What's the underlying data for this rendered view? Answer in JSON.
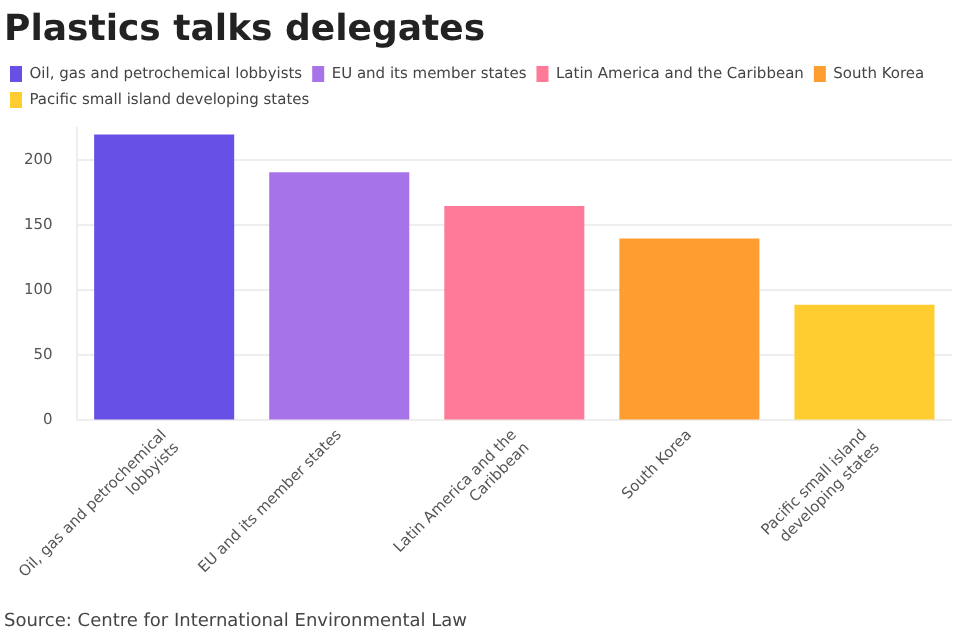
{
  "chart_data": {
    "type": "bar",
    "title": "Plastics talks delegates",
    "categories": [
      "Oil, gas and petrochemical lobbyists",
      "EU and its member states",
      "Latin America and the Caribbean",
      "South Korea",
      "Pacific small island developing states"
    ],
    "series": [
      {
        "name": "Oil, gas and petrochemical lobbyists",
        "color": "#6750e6",
        "values": [
          220,
          null,
          null,
          null,
          null
        ]
      },
      {
        "name": "EU and its member states",
        "color": "#a674e8",
        "values": [
          null,
          191,
          null,
          null,
          null
        ]
      },
      {
        "name": "Latin America and the Caribbean",
        "color": "#ff7a98",
        "values": [
          null,
          null,
          165,
          null,
          null
        ]
      },
      {
        "name": "South Korea",
        "color": "#ff9e30",
        "values": [
          null,
          null,
          null,
          140,
          null
        ]
      },
      {
        "name": "Pacific small island developing states",
        "color": "#ffcd30",
        "values": [
          null,
          null,
          null,
          null,
          89
        ]
      }
    ],
    "ylim": [
      0,
      225
    ],
    "yticks": [
      0,
      50,
      100,
      150,
      200
    ],
    "grid": "y",
    "legend": "top left",
    "annotations": [
      "Source: Centre for International Environmental Law"
    ]
  }
}
